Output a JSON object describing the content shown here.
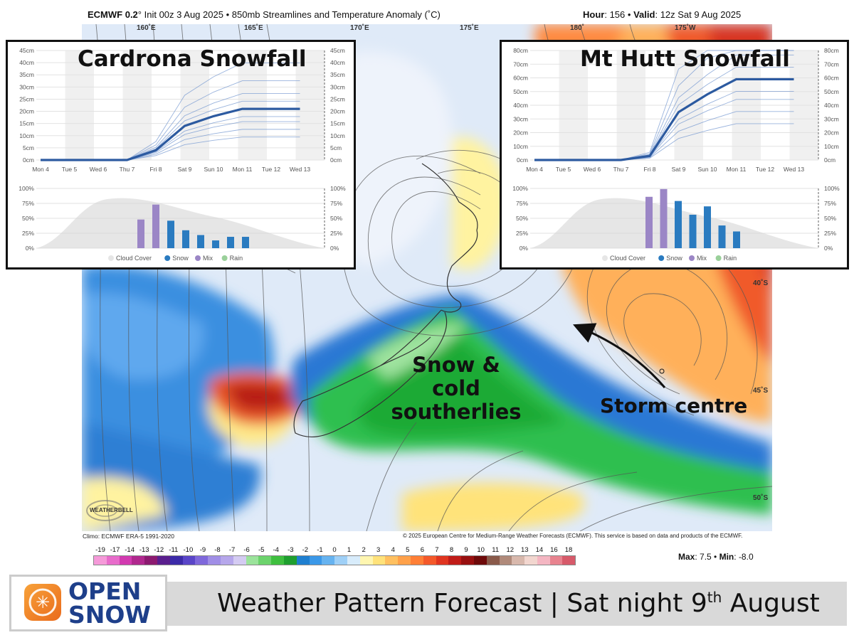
{
  "header": {
    "model": "ECMWF 0.2",
    "deg": "°",
    "init": "Init 00z 3 Aug 2025",
    "sep": "•",
    "product": "850mb Streamlines and Temperature Anomaly (˚C)",
    "hour_label": "Hour",
    "hour_value": "156",
    "valid_label": "Valid",
    "valid_value": "12z Sat 9 Aug 2025"
  },
  "map": {
    "longitudes": [
      "160˚E",
      "165˚E",
      "170˚E",
      "175˚E",
      "180˚",
      "175˚W"
    ],
    "latitudes": [
      "40˚S",
      "45˚S",
      "50˚S"
    ],
    "annotations": {
      "snow_line1": "Snow & cold",
      "snow_line2": "southerlies",
      "storm": "Storm centre"
    },
    "climo": "Climo: ECMWF ERA-5 1991-2020",
    "copyright": "© 2025 European Centre for Medium-Range Weather Forecasts (ECMWF). This service is based on data and products of the ECMWF.",
    "watermark": "WEATHERBELL"
  },
  "colorbar": {
    "ticks": [
      "-19",
      "-17",
      "-14",
      "-13",
      "-12",
      "-11",
      "-10",
      "-9",
      "-8",
      "-7",
      "-6",
      "-5",
      "-4",
      "-3",
      "-2",
      "-1",
      "0",
      "1",
      "2",
      "3",
      "4",
      "5",
      "6",
      "7",
      "8",
      "9",
      "10",
      "11",
      "12",
      "13",
      "14",
      "16",
      "18"
    ],
    "colors": [
      "#f59ad9",
      "#e86ccb",
      "#d23ab0",
      "#b0288e",
      "#8c1a70",
      "#5a1f8e",
      "#3c2aa8",
      "#5a45c8",
      "#7f68db",
      "#a08ee6",
      "#b6a7eb",
      "#d4cbf2",
      "#9be39b",
      "#6cd36c",
      "#3fbf3f",
      "#1f9f2f",
      "#1f7fd0",
      "#3b98e8",
      "#66b3f0",
      "#9fd0f7",
      "#d8ecfb",
      "#fff6b0",
      "#ffe27a",
      "#ffc060",
      "#ffa14a",
      "#ff7f36",
      "#f4592a",
      "#e03520",
      "#c01c18",
      "#981010",
      "#6e0a0a",
      "#8a5a4a",
      "#b08a7a",
      "#d8b8ac",
      "#f2d6cf",
      "#f4b6c2",
      "#e8838f",
      "#d75a6a"
    ],
    "max_label": "Max",
    "max_value": "7.5",
    "min_label": "Min",
    "min_value": "-8.0"
  },
  "cardrona": {
    "title": "Cardrona Snowfall",
    "y_ticks": [
      "45cm",
      "40cm",
      "35cm",
      "30cm",
      "25cm",
      "20cm",
      "15cm",
      "10cm",
      "5cm",
      "0cm"
    ],
    "x_ticks": [
      "Mon 4",
      "Tue 5",
      "Wed 6",
      "Thu 7",
      "Fri 8",
      "Sat 9",
      "Sun 10",
      "Mon 11",
      "Tue 12",
      "Wed 13"
    ],
    "pct_ticks": [
      "100%",
      "75%",
      "50%",
      "25%",
      "0%"
    ],
    "legend": [
      "Cloud Cover",
      "Snow",
      "Mix",
      "Rain"
    ]
  },
  "mthutt": {
    "title": "Mt Hutt Snowfall",
    "y_ticks": [
      "80cm",
      "70cm",
      "60cm",
      "50cm",
      "40cm",
      "30cm",
      "20cm",
      "10cm",
      "0cm"
    ],
    "x_ticks": [
      "Mon 4",
      "Tue 5",
      "Wed 6",
      "Thu 7",
      "Fri 8",
      "Sat 9",
      "Sun 10",
      "Mon 11",
      "Tue 12",
      "Wed 13"
    ],
    "pct_ticks": [
      "100%",
      "75%",
      "50%",
      "25%",
      "0%"
    ],
    "legend": [
      "Cloud Cover",
      "Snow",
      "Mix",
      "Rain"
    ]
  },
  "chart_data": [
    {
      "type": "line",
      "title": "Cardrona Snowfall",
      "x": [
        "Mon 4",
        "Tue 5",
        "Wed 6",
        "Thu 7",
        "Fri 8",
        "Sat 9",
        "Sun 10",
        "Mon 11",
        "Tue 12",
        "Wed 13"
      ],
      "ylim": [
        0,
        45
      ],
      "series": [
        {
          "values": [
            0,
            0,
            0,
            0,
            4,
            14,
            18,
            21,
            21,
            21
          ]
        }
      ]
    },
    {
      "type": "bar",
      "x": [
        "Thu 7",
        "Thu 7",
        "Fri 8",
        "Fri 8",
        "Sat 9",
        "Sat 9",
        "Sun 10",
        "Sun 10",
        "Mon 11"
      ],
      "ylim": [
        0,
        100
      ],
      "series": [
        {
          "name": "Mix",
          "values": [
            48,
            73,
            0,
            0,
            0,
            0,
            0,
            0,
            0
          ]
        },
        {
          "name": "Snow",
          "values": [
            0,
            0,
            46,
            30,
            22,
            13,
            19,
            19,
            0
          ]
        }
      ]
    },
    {
      "type": "line",
      "title": "Mt Hutt Snowfall",
      "x": [
        "Mon 4",
        "Tue 5",
        "Wed 6",
        "Thu 7",
        "Fri 8",
        "Sat 9",
        "Sun 10",
        "Mon 11",
        "Tue 12",
        "Wed 13"
      ],
      "ylim": [
        0,
        80
      ],
      "series": [
        {
          "values": [
            0,
            0,
            0,
            0,
            3,
            35,
            48,
            59,
            59,
            59
          ]
        }
      ]
    },
    {
      "type": "bar",
      "x": [
        "Thu 7",
        "Fri 8",
        "Fri 8",
        "Sat 9",
        "Sat 9",
        "Sun 10",
        "Sun 10"
      ],
      "ylim": [
        0,
        100
      ],
      "series": [
        {
          "name": "Mix",
          "values": [
            86,
            99,
            0,
            0,
            0,
            0,
            0
          ]
        },
        {
          "name": "Snow",
          "values": [
            0,
            0,
            79,
            56,
            70,
            38,
            28
          ]
        }
      ]
    }
  ],
  "footer": {
    "logo_line1": "OPEN",
    "logo_line2": "SNOW",
    "title_main": "Weather Pattern Forecast | Sat night 9",
    "title_sup": "th",
    "title_end": " August"
  }
}
